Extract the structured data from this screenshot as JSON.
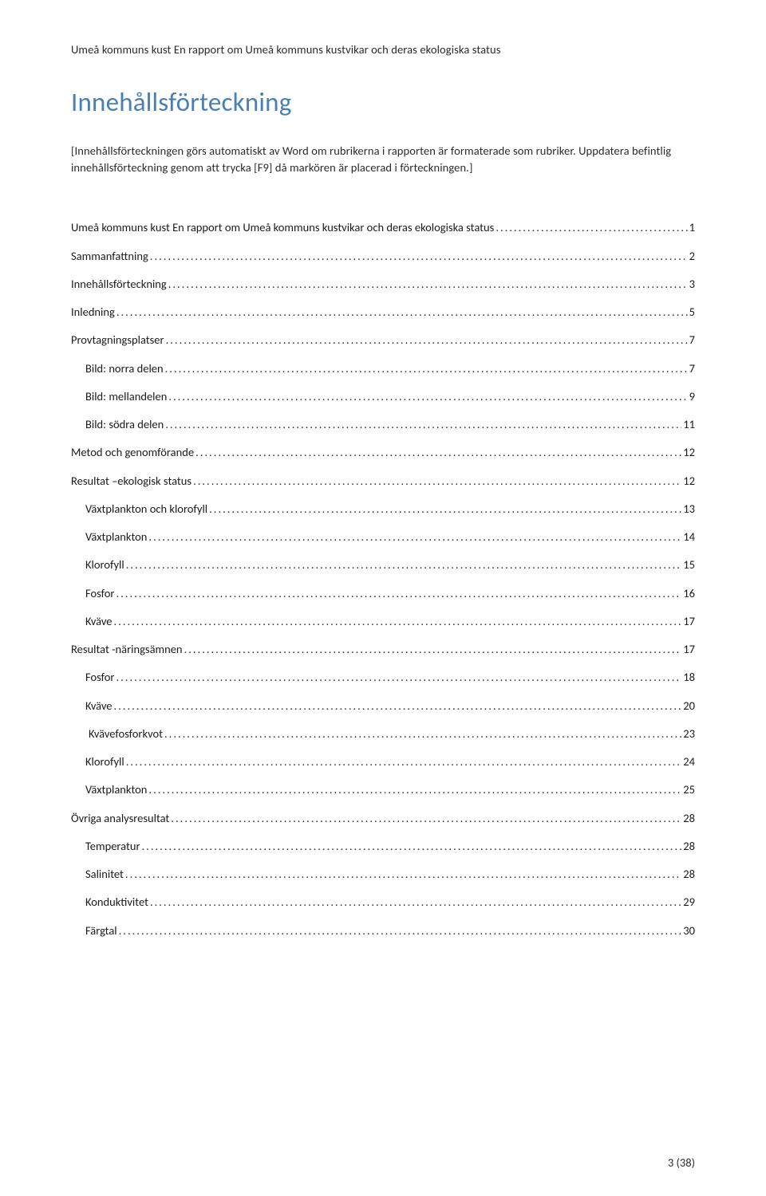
{
  "header": "Umeå kommuns kust En rapport om Umeå kommuns kustvikar och deras ekologiska status",
  "title": "Innehållsförteckning",
  "instruction": "[Innehållsförteckningen görs automatiskt av Word om rubrikerna i rapporten är formaterade som rubriker. Uppdatera befintlig innehållsförteckning genom att trycka [F9] då markören är placerad i förteckningen.]",
  "items": [
    {
      "label": "Umeå kommuns kust En rapport om Umeå kommuns kustvikar och deras ekologiska status",
      "page": "1",
      "indent": 0
    },
    {
      "label": "Sammanfattning",
      "page": "2",
      "indent": 0
    },
    {
      "label": "Innehållsförteckning",
      "page": "3",
      "indent": 0
    },
    {
      "label": "Inledning",
      "page": "5",
      "indent": 0
    },
    {
      "label": "Provtagningsplatser",
      "page": "7",
      "indent": 0
    },
    {
      "label": "Bild: norra delen",
      "page": "7",
      "indent": 1
    },
    {
      "label": "Bild: mellandelen",
      "page": "9",
      "indent": 1
    },
    {
      "label": "Bild: södra delen",
      "page": "11",
      "indent": 1
    },
    {
      "label": "Metod och genomförande",
      "page": "12",
      "indent": 0
    },
    {
      "label": "Resultat –ekologisk status",
      "page": "12",
      "indent": 0
    },
    {
      "label": "Växtplankton och klorofyll",
      "page": "13",
      "indent": 1
    },
    {
      "label": "Växtplankton",
      "page": "14",
      "indent": 1
    },
    {
      "label": "Klorofyll",
      "page": "15",
      "indent": 1
    },
    {
      "label": "Fosfor",
      "page": "16",
      "indent": 1
    },
    {
      "label": "Kväve",
      "page": "17",
      "indent": 1
    },
    {
      "label": "Resultat -näringsämnen",
      "page": "17",
      "indent": 0
    },
    {
      "label": "Fosfor",
      "page": "18",
      "indent": 1
    },
    {
      "label": "Kväve",
      "page": "20",
      "indent": 1
    },
    {
      "label": "Kvävefosforkvot",
      "page": "23",
      "indent": 2
    },
    {
      "label": "Klorofyll",
      "page": "24",
      "indent": 1
    },
    {
      "label": "Växtplankton",
      "page": "25",
      "indent": 1
    },
    {
      "label": "Övriga analysresultat",
      "page": "28",
      "indent": 0
    },
    {
      "label": "Temperatur",
      "page": "28",
      "indent": 1
    },
    {
      "label": "Salinitet",
      "page": "28",
      "indent": 1
    },
    {
      "label": "Konduktivitet",
      "page": "29",
      "indent": 1
    },
    {
      "label": "Färgtal",
      "page": "30",
      "indent": 1
    }
  ],
  "footer": "3 (38)"
}
